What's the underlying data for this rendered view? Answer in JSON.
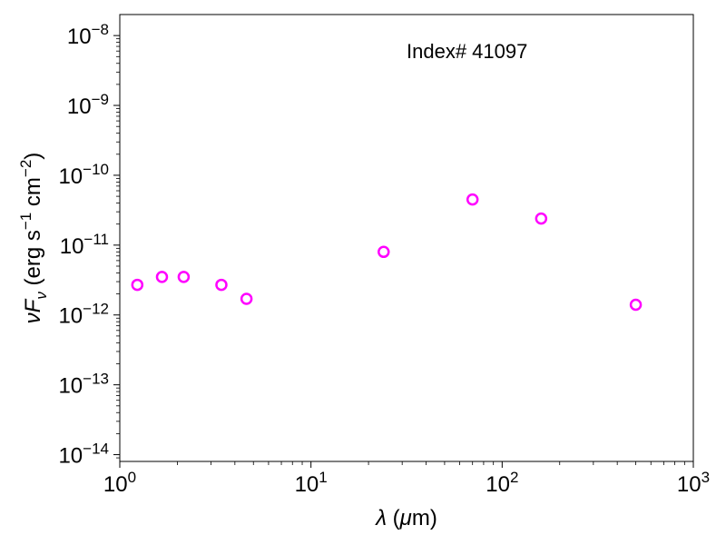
{
  "chart_data": {
    "type": "scatter",
    "annotation": "Index# 41097",
    "x_scale": "log",
    "y_scale": "log",
    "xlim": [
      1,
      1000
    ],
    "ylim": [
      8e-15,
      2e-08
    ],
    "grid": false,
    "legend": "none",
    "marker": "open-circle",
    "marker_color": "#ff00ff",
    "x_ticks": [
      {
        "value": 1,
        "base": "10",
        "exp": "0"
      },
      {
        "value": 10,
        "base": "10",
        "exp": "1"
      },
      {
        "value": 100,
        "base": "10",
        "exp": "2"
      },
      {
        "value": 1000,
        "base": "10",
        "exp": "3"
      }
    ],
    "y_ticks": [
      {
        "value": 1e-14,
        "base": "10",
        "exp": "−14"
      },
      {
        "value": 1e-13,
        "base": "10",
        "exp": "−13"
      },
      {
        "value": 1e-12,
        "base": "10",
        "exp": "−12"
      },
      {
        "value": 1e-11,
        "base": "10",
        "exp": "−11"
      },
      {
        "value": 1e-10,
        "base": "10",
        "exp": "−10"
      },
      {
        "value": 1e-09,
        "base": "10",
        "exp": "−9"
      },
      {
        "value": 1e-08,
        "base": "10",
        "exp": "−8"
      }
    ],
    "points": [
      {
        "x": 1.235,
        "y": 2.7e-12
      },
      {
        "x": 1.662,
        "y": 3.5e-12
      },
      {
        "x": 2.159,
        "y": 3.5e-12
      },
      {
        "x": 3.4,
        "y": 2.7e-12
      },
      {
        "x": 4.6,
        "y": 1.7e-12
      },
      {
        "x": 24,
        "y": 8e-12
      },
      {
        "x": 70,
        "y": 4.5e-11
      },
      {
        "x": 160,
        "y": 2.4e-11
      },
      {
        "x": 500,
        "y": 1.4e-12
      }
    ]
  }
}
